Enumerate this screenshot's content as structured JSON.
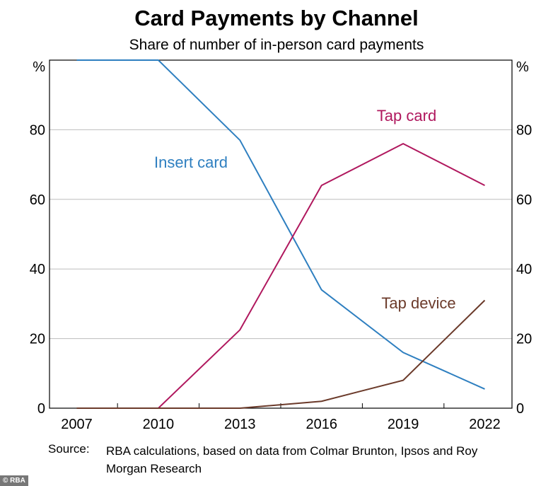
{
  "chart_data": {
    "type": "line",
    "title": "Card Payments by Channel",
    "subtitle": "Share of number of in-person card payments",
    "y_unit_left": "%",
    "y_unit_right": "%",
    "ylim": [
      0,
      100
    ],
    "yticks": [
      0,
      20,
      40,
      60,
      80
    ],
    "xlim": [
      2006,
      2023
    ],
    "xticks": [
      2007,
      2010,
      2013,
      2016,
      2019,
      2022
    ],
    "grid": true,
    "series": [
      {
        "name": "Insert card",
        "color": "#2E7FC0",
        "x": [
          2007,
          2010,
          2013,
          2016,
          2019,
          2022
        ],
        "y": [
          100,
          100,
          77,
          34,
          16,
          5.5
        ]
      },
      {
        "name": "Tap card",
        "color": "#B0185E",
        "x": [
          2007,
          2010,
          2013,
          2016,
          2019,
          2022
        ],
        "y": [
          0,
          0,
          22.5,
          64,
          76,
          64
        ]
      },
      {
        "name": "Tap device",
        "color": "#6B3A2A",
        "x": [
          2007,
          2010,
          2013,
          2016,
          2019,
          2022
        ],
        "y": [
          0,
          0,
          0,
          2,
          8,
          31
        ]
      }
    ]
  },
  "source": {
    "label": "Source:",
    "text": "RBA calculations, based on data from Colmar Brunton, Ipsos and Roy Morgan Research"
  },
  "copyright": "© RBA"
}
